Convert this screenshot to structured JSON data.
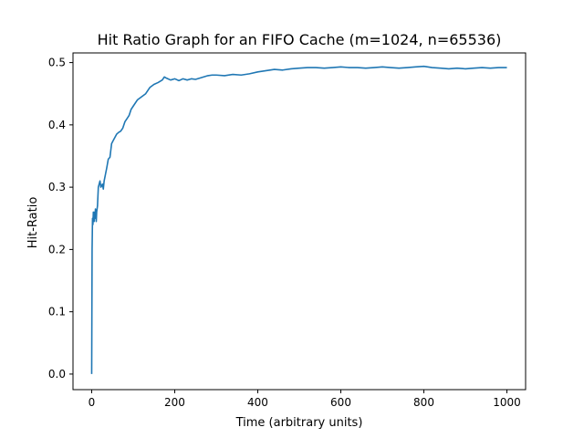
{
  "chart_data": {
    "type": "line",
    "title": "Hit Ratio Graph for an FIFO Cache (m=1024, n=65536)",
    "xlabel": "Time (arbitrary units)",
    "ylabel": "Hit-Ratio",
    "xlim": [
      -45,
      1045
    ],
    "ylim": [
      -0.025,
      0.5155
    ],
    "xticks": [
      0,
      200,
      400,
      600,
      800,
      1000
    ],
    "yticks": [
      0.0,
      0.1,
      0.2,
      0.3,
      0.4,
      0.5
    ],
    "xtick_labels": [
      "0",
      "200",
      "400",
      "600",
      "800",
      "1000"
    ],
    "ytick_labels": [
      "0.0",
      "0.1",
      "0.2",
      "0.3",
      "0.4",
      "0.5"
    ],
    "grid": false,
    "line_color": "#1f77b4",
    "series": [
      {
        "x": [
          0,
          1,
          2,
          3,
          4,
          5,
          6,
          7,
          8,
          9,
          10,
          11,
          12,
          14,
          16,
          18,
          20,
          22,
          24,
          26,
          28,
          30,
          33,
          36,
          40,
          44,
          48,
          52,
          56,
          60,
          65,
          70,
          75,
          80,
          85,
          90,
          95,
          100,
          110,
          120,
          130,
          140,
          150,
          160,
          170,
          175,
          180,
          190,
          200,
          210,
          220,
          230,
          240,
          250,
          260,
          270,
          280,
          290,
          300,
          320,
          340,
          360,
          380,
          400,
          420,
          440,
          460,
          480,
          500,
          520,
          540,
          560,
          580,
          600,
          620,
          640,
          660,
          680,
          700,
          720,
          740,
          760,
          780,
          800,
          820,
          840,
          860,
          880,
          900,
          920,
          940,
          960,
          980,
          1000
        ],
        "y": [
          0.0,
          0.2,
          0.25,
          0.24,
          0.26,
          0.255,
          0.245,
          0.26,
          0.25,
          0.265,
          0.262,
          0.245,
          0.26,
          0.27,
          0.3,
          0.305,
          0.31,
          0.3,
          0.302,
          0.305,
          0.297,
          0.31,
          0.32,
          0.33,
          0.345,
          0.348,
          0.37,
          0.375,
          0.38,
          0.385,
          0.388,
          0.39,
          0.395,
          0.405,
          0.41,
          0.415,
          0.425,
          0.43,
          0.44,
          0.445,
          0.45,
          0.46,
          0.465,
          0.468,
          0.472,
          0.477,
          0.475,
          0.472,
          0.474,
          0.471,
          0.474,
          0.472,
          0.474,
          0.473,
          0.475,
          0.477,
          0.479,
          0.48,
          0.48,
          0.479,
          0.481,
          0.48,
          0.482,
          0.485,
          0.487,
          0.489,
          0.488,
          0.49,
          0.491,
          0.492,
          0.492,
          0.491,
          0.492,
          0.493,
          0.492,
          0.492,
          0.491,
          0.492,
          0.493,
          0.492,
          0.491,
          0.492,
          0.493,
          0.494,
          0.492,
          0.491,
          0.49,
          0.491,
          0.49,
          0.491,
          0.492,
          0.491,
          0.492,
          0.492
        ]
      }
    ]
  }
}
